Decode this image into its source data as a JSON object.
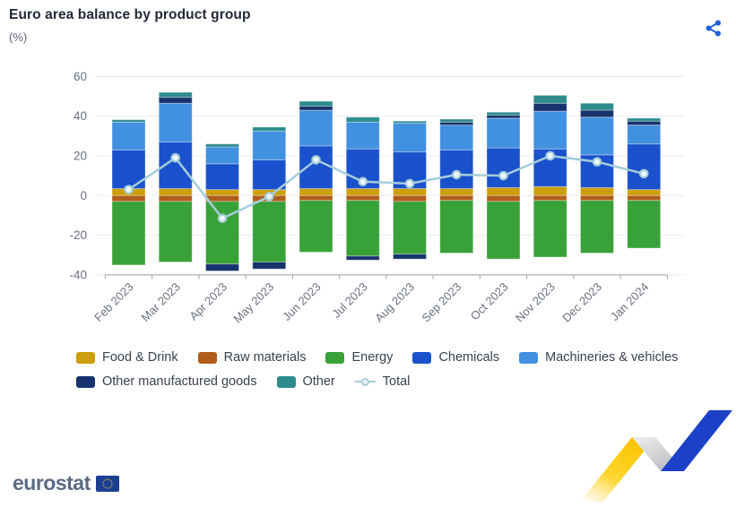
{
  "header": {
    "title": "Euro area balance by product group",
    "subtitle": "(%)"
  },
  "share": {
    "icon_color": "#1d5fd6"
  },
  "chart_data": {
    "type": "bar",
    "stacked": true,
    "title": "Euro area balance by product group",
    "ylabel": "(%)",
    "xlabel": "",
    "ylim": [
      -40,
      60
    ],
    "yticks": [
      60,
      40,
      20,
      0,
      -20,
      -40
    ],
    "grid": true,
    "legend_position": "bottom",
    "grid_color": "#e6ecf5",
    "axis_color": "#9aa3ad",
    "tick_label_color": "#6a717d",
    "categories": [
      "Feb 2023",
      "Mar 2023",
      "Apr 2023",
      "May 2023",
      "Jun 2023",
      "Jul 2023",
      "Aug 2023",
      "Sep 2023",
      "Oct 2023",
      "Nov 2023",
      "Dec 2023",
      "Jan 2024"
    ],
    "series": [
      {
        "name": "Food & Drink",
        "color": "#cc9f0a",
        "values": [
          3.5,
          3.5,
          3.0,
          3.0,
          3.5,
          3.5,
          3.5,
          3.5,
          4.0,
          4.5,
          4.0,
          3.0
        ]
      },
      {
        "name": "Raw materials",
        "color": "#b05e1a",
        "values": [
          -3.0,
          -3.0,
          -3.0,
          -3.0,
          -2.5,
          -2.5,
          -3.0,
          -2.5,
          -3.0,
          -2.5,
          -2.5,
          -2.5
        ]
      },
      {
        "name": "Energy",
        "color": "#38a138",
        "values": [
          -32.0,
          -30.5,
          -31.5,
          -30.5,
          -26.0,
          -28.0,
          -26.5,
          -26.5,
          -29.0,
          -28.5,
          -26.5,
          -24.0
        ]
      },
      {
        "name": "Chemicals",
        "color": "#1a51cd",
        "values": [
          19.5,
          23.5,
          13.0,
          15.0,
          21.5,
          20.0,
          18.5,
          19.5,
          20.0,
          19.0,
          16.5,
          23.0
        ]
      },
      {
        "name": "Machineries & vehicles",
        "color": "#4290e0",
        "values": [
          14.0,
          19.5,
          8.5,
          14.5,
          18.0,
          13.5,
          14.5,
          12.5,
          15.0,
          19.0,
          19.0,
          9.5
        ]
      },
      {
        "name": "Other manufactured goods",
        "color": "#16336d",
        "values": [
          0.0,
          3.0,
          -3.5,
          -3.5,
          2.0,
          -2.0,
          -2.5,
          1.5,
          1.5,
          4.0,
          3.5,
          2.0
        ]
      },
      {
        "name": "Other",
        "color": "#2d8b8d",
        "values": [
          1.2,
          2.5,
          1.5,
          2.0,
          2.5,
          2.5,
          1.0,
          1.5,
          1.5,
          4.0,
          3.5,
          1.5
        ]
      }
    ],
    "line_series": {
      "name": "Total",
      "color": "#a5cdd9",
      "marker_fill": "#eef6f9",
      "values": [
        3,
        19,
        -11.5,
        -0.5,
        18,
        7,
        6,
        10.5,
        10,
        20,
        17,
        11
      ]
    }
  },
  "footer": {
    "brand": "eurostat"
  },
  "logo": {
    "wordmark_color": "#5b6b84",
    "flag_bg": "#1c3f92",
    "stars_color": "#f7d117"
  },
  "decoration": {
    "yellow": "#fcc400",
    "gray": "#b9bcc0",
    "blue": "#1c41c8"
  }
}
